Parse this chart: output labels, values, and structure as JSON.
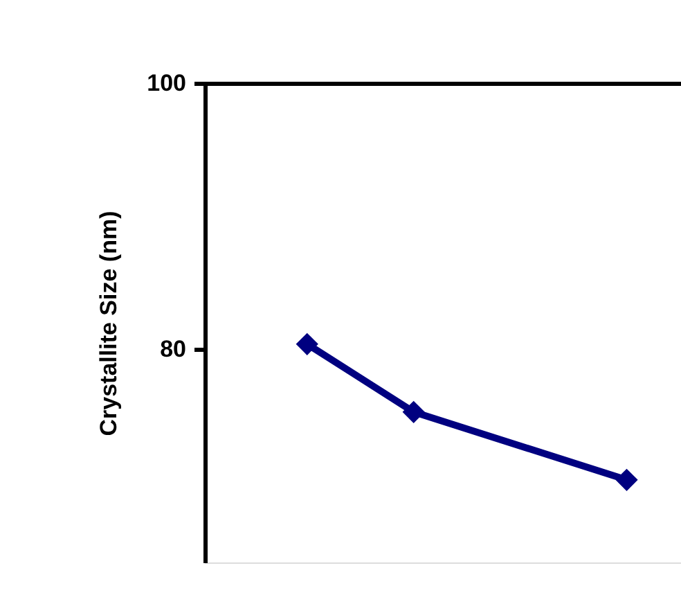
{
  "chart_data": {
    "type": "line",
    "ylabel": "Crystallite Size (nm)",
    "categories": [
      null,
      null,
      null,
      null
    ],
    "series": [
      {
        "color": "#000080",
        "values": [
          80.4,
          75.3,
          null,
          70.2
        ]
      }
    ],
    "ylim": [
      64,
      100
    ],
    "yticks": [
      80,
      100
    ],
    "tick_labels": "y",
    "grid": false,
    "marker": "diamond",
    "line_style": "solid"
  }
}
